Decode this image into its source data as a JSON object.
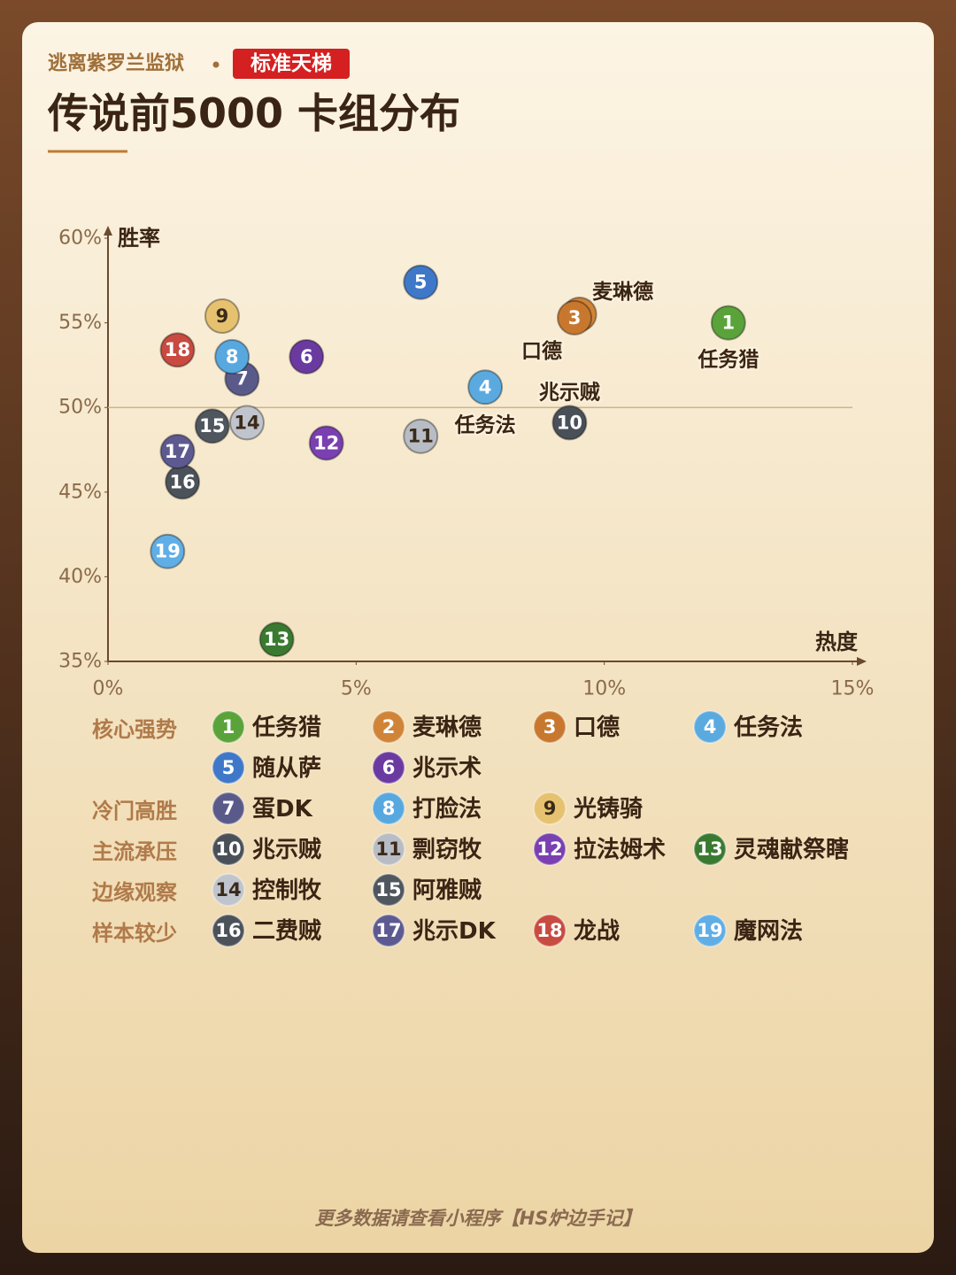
{
  "header": {
    "subtitle": "逃离紫罗兰监狱",
    "badge": "标准天梯",
    "title": "传说前5000 卡组分布"
  },
  "chart_data": {
    "type": "scatter",
    "x_label": "热度",
    "y_label": "胜率",
    "xlim": [
      0,
      15
    ],
    "xticks": [
      {
        "value": 0,
        "label": "0%"
      },
      {
        "value": 5,
        "label": "5%"
      },
      {
        "value": 10,
        "label": "10%"
      },
      {
        "value": 15,
        "label": "15%"
      }
    ],
    "ylim": [
      35,
      60
    ],
    "yticks": [
      {
        "value": 35,
        "label": "35%"
      },
      {
        "value": 40,
        "label": "40%"
      },
      {
        "value": 45,
        "label": "45%"
      },
      {
        "value": 50,
        "label": "50%"
      },
      {
        "value": 55,
        "label": "55%"
      },
      {
        "value": 60,
        "label": "60%"
      }
    ],
    "reference_line": 50,
    "groups": [
      "核心强势",
      "冷门高胜",
      "主流承压",
      "边缘观察",
      "样本较少"
    ],
    "series": [
      {
        "label": "1",
        "name": "任务猎",
        "group": 0,
        "color": "#5aa33a",
        "x": 12.5,
        "y": 55.0
      },
      {
        "label": "2",
        "name": "麦琳德",
        "group": 0,
        "color": "#d08437",
        "x": 9.5,
        "y": 55.5
      },
      {
        "label": "3",
        "name": "口德",
        "group": 0,
        "color": "#c8782e",
        "x": 9.4,
        "y": 55.3
      },
      {
        "label": "4",
        "name": "任务法",
        "group": 0,
        "color": "#5aaae0",
        "x": 7.6,
        "y": 51.2
      },
      {
        "label": "5",
        "name": "随从萨",
        "group": 0,
        "color": "#3f78c8",
        "x": 6.3,
        "y": 57.4
      },
      {
        "label": "6",
        "name": "兆示术",
        "group": 0,
        "color": "#6a3aa0",
        "x": 4.0,
        "y": 53.0
      },
      {
        "label": "7",
        "name": "蛋DK",
        "group": 1,
        "color": "#5a5a8a",
        "x": 2.7,
        "y": 51.7
      },
      {
        "label": "8",
        "name": "打脸法",
        "group": 1,
        "color": "#58a8e0",
        "x": 2.5,
        "y": 53.0
      },
      {
        "label": "9",
        "name": "光铸骑",
        "group": 1,
        "color": "#e6c270",
        "x": 2.3,
        "y": 55.4
      },
      {
        "label": "10",
        "name": "兆示贼",
        "group": 2,
        "color": "#4a5058",
        "x": 9.3,
        "y": 49.1
      },
      {
        "label": "11",
        "name": "剽窃牧",
        "group": 2,
        "color": "#b8bcc4",
        "x": 6.3,
        "y": 48.3
      },
      {
        "label": "12",
        "name": "拉法姆术",
        "group": 2,
        "color": "#7a3fb0",
        "x": 4.4,
        "y": 47.9
      },
      {
        "label": "13",
        "name": "灵魂献祭瞎",
        "group": 2,
        "color": "#3a7a30",
        "x": 3.4,
        "y": 36.3
      },
      {
        "label": "14",
        "name": "控制牧",
        "group": 3,
        "color": "#c0c4cc",
        "x": 2.8,
        "y": 49.1
      },
      {
        "label": "15",
        "name": "阿雅贼",
        "group": 3,
        "color": "#50565e",
        "x": 2.1,
        "y": 48.9
      },
      {
        "label": "16",
        "name": "二费贼",
        "group": 4,
        "color": "#4c525a",
        "x": 1.5,
        "y": 45.6
      },
      {
        "label": "17",
        "name": "兆示DK",
        "group": 4,
        "color": "#5c5a90",
        "x": 1.4,
        "y": 47.4
      },
      {
        "label": "18",
        "name": "龙战",
        "group": 4,
        "color": "#c84a40",
        "x": 1.4,
        "y": 53.4
      },
      {
        "label": "19",
        "name": "魔网法",
        "group": 4,
        "color": "#60aee6",
        "x": 1.2,
        "y": 41.5
      }
    ]
  },
  "footer": "更多数据请查看小程序【HS炉边手记】"
}
